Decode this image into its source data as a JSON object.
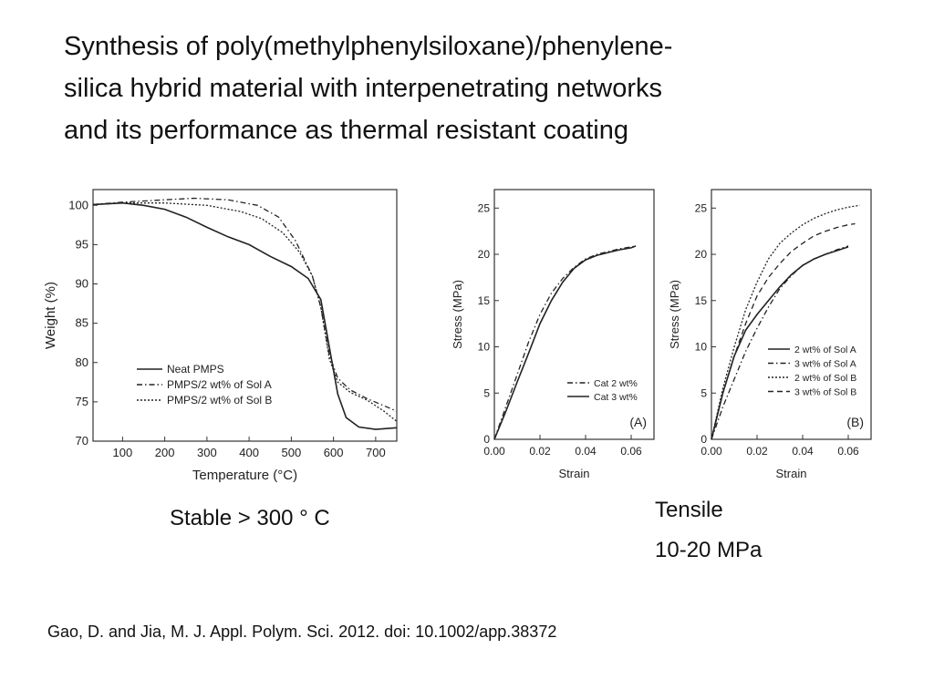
{
  "slide": {
    "title_lines": [
      "Synthesis of poly(methylphenylsiloxane)/phenylene-",
      "silica hybrid material with interpenetrating networks",
      "and its performance as thermal resistant coating"
    ],
    "caption_tga": "Stable > 300 ° C",
    "caption_tensile_line1": "Tensile",
    "caption_tensile_line2": "10-20 MPa",
    "citation": "Gao, D. and Jia, M. J. Appl. Polym. Sci. 2012. doi: 10.1002/app.38372"
  },
  "chart_data": [
    {
      "type": "line",
      "xlabel": "Temperature (°C)",
      "ylabel": "Weight (%)",
      "xlim": [
        30,
        750
      ],
      "ylim": [
        70,
        102
      ],
      "xticks": [
        100,
        200,
        300,
        400,
        500,
        600,
        700
      ],
      "yticks": [
        70,
        75,
        80,
        85,
        90,
        95,
        100
      ],
      "legend_position": "lower-left",
      "series": [
        {
          "name": "Neat PMPS",
          "dash": "solid",
          "points": [
            [
              30,
              100.1
            ],
            [
              100,
              100.3
            ],
            [
              150,
              100
            ],
            [
              200,
              99.5
            ],
            [
              250,
              98.5
            ],
            [
              300,
              97.2
            ],
            [
              350,
              96
            ],
            [
              400,
              95
            ],
            [
              450,
              93.5
            ],
            [
              500,
              92.2
            ],
            [
              540,
              90.7
            ],
            [
              570,
              88
            ],
            [
              590,
              82
            ],
            [
              610,
              76
            ],
            [
              630,
              73
            ],
            [
              660,
              71.8
            ],
            [
              700,
              71.5
            ],
            [
              750,
              71.7
            ]
          ]
        },
        {
          "name": "PMPS/2 wt% of Sol A",
          "dash": "dashdot",
          "points": [
            [
              30,
              100.1
            ],
            [
              100,
              100.4
            ],
            [
              200,
              100.7
            ],
            [
              270,
              100.9
            ],
            [
              350,
              100.7
            ],
            [
              420,
              100
            ],
            [
              470,
              98.5
            ],
            [
              510,
              95.5
            ],
            [
              550,
              91
            ],
            [
              570,
              87
            ],
            [
              590,
              81
            ],
            [
              610,
              78
            ],
            [
              640,
              76.5
            ],
            [
              680,
              75.4
            ],
            [
              720,
              74.5
            ],
            [
              750,
              73.8
            ]
          ]
        },
        {
          "name": "PMPS/2 wt% of Sol B",
          "dash": "dotted",
          "points": [
            [
              30,
              100.1
            ],
            [
              100,
              100.3
            ],
            [
              200,
              100.3
            ],
            [
              300,
              100
            ],
            [
              380,
              99.2
            ],
            [
              430,
              98.3
            ],
            [
              480,
              96.5
            ],
            [
              520,
              94
            ],
            [
              550,
              91
            ],
            [
              570,
              87
            ],
            [
              590,
              80.5
            ],
            [
              610,
              77.5
            ],
            [
              640,
              76.2
            ],
            [
              680,
              75.2
            ],
            [
              720,
              73.8
            ],
            [
              750,
              72.5
            ]
          ]
        }
      ]
    },
    {
      "type": "line",
      "xlabel": "Strain",
      "ylabel": "Stress (MPa)",
      "xlim": [
        0,
        0.07
      ],
      "ylim": [
        0,
        27
      ],
      "xticks": [
        0.0,
        0.02,
        0.04,
        0.06
      ],
      "xtick_labels": [
        "0.00",
        "0.02",
        "0.04",
        "0.06"
      ],
      "yticks": [
        0,
        5,
        10,
        15,
        20,
        25
      ],
      "legend_position": "center-right",
      "panel_label": "(A)",
      "series": [
        {
          "name": "Cat 2 wt%",
          "dash": "dashdot",
          "points": [
            [
              0,
              0
            ],
            [
              0.005,
              3.5
            ],
            [
              0.01,
              7
            ],
            [
              0.015,
              10.5
            ],
            [
              0.02,
              13.5
            ],
            [
              0.025,
              15.8
            ],
            [
              0.03,
              17.4
            ],
            [
              0.035,
              18.6
            ],
            [
              0.04,
              19.5
            ],
            [
              0.045,
              20
            ],
            [
              0.05,
              20.3
            ],
            [
              0.055,
              20.6
            ],
            [
              0.06,
              20.8
            ],
            [
              0.062,
              20.9
            ]
          ]
        },
        {
          "name": "Cat 3 wt%",
          "dash": "solid",
          "points": [
            [
              0,
              0
            ],
            [
              0.005,
              3
            ],
            [
              0.01,
              6.2
            ],
            [
              0.015,
              9.3
            ],
            [
              0.02,
              12.5
            ],
            [
              0.025,
              15
            ],
            [
              0.03,
              17
            ],
            [
              0.035,
              18.5
            ],
            [
              0.04,
              19.4
            ],
            [
              0.045,
              19.9
            ],
            [
              0.05,
              20.2
            ],
            [
              0.055,
              20.5
            ],
            [
              0.06,
              20.7
            ],
            [
              0.062,
              20.9
            ]
          ]
        }
      ]
    },
    {
      "type": "line",
      "xlabel": "Strain",
      "ylabel": "Stress (MPa)",
      "xlim": [
        0,
        0.07
      ],
      "ylim": [
        0,
        27
      ],
      "xticks": [
        0.0,
        0.02,
        0.04,
        0.06
      ],
      "xtick_labels": [
        "0.00",
        "0.02",
        "0.04",
        "0.06"
      ],
      "yticks": [
        0,
        5,
        10,
        15,
        20,
        25
      ],
      "legend_position": "lower-right",
      "panel_label": "(B)",
      "series": [
        {
          "name": "2 wt% of Sol A",
          "dash": "solid",
          "points": [
            [
              0,
              0
            ],
            [
              0.005,
              5
            ],
            [
              0.01,
              9
            ],
            [
              0.015,
              11.8
            ],
            [
              0.02,
              13.5
            ],
            [
              0.025,
              15
            ],
            [
              0.03,
              16.5
            ],
            [
              0.035,
              17.8
            ],
            [
              0.04,
              18.8
            ],
            [
              0.045,
              19.5
            ],
            [
              0.05,
              20
            ],
            [
              0.055,
              20.4
            ],
            [
              0.06,
              20.8
            ]
          ]
        },
        {
          "name": "3 wt% of Sol A",
          "dash": "dashdot",
          "points": [
            [
              0,
              0
            ],
            [
              0.005,
              3.5
            ],
            [
              0.01,
              6.5
            ],
            [
              0.015,
              9.5
            ],
            [
              0.02,
              12
            ],
            [
              0.025,
              14.3
            ],
            [
              0.03,
              16.3
            ],
            [
              0.035,
              17.7
            ],
            [
              0.04,
              18.8
            ],
            [
              0.045,
              19.5
            ],
            [
              0.05,
              20
            ],
            [
              0.055,
              20.5
            ],
            [
              0.06,
              20.9
            ]
          ]
        },
        {
          "name": "2 wt% of Sol B",
          "dash": "dotted",
          "points": [
            [
              0,
              0
            ],
            [
              0.005,
              5.5
            ],
            [
              0.01,
              10
            ],
            [
              0.015,
              14
            ],
            [
              0.02,
              17
            ],
            [
              0.025,
              19.5
            ],
            [
              0.03,
              21.2
            ],
            [
              0.035,
              22.3
            ],
            [
              0.04,
              23.2
            ],
            [
              0.045,
              23.9
            ],
            [
              0.05,
              24.4
            ],
            [
              0.055,
              24.8
            ],
            [
              0.06,
              25.1
            ],
            [
              0.065,
              25.3
            ]
          ]
        },
        {
          "name": "3 wt% of Sol B",
          "dash": "dashed",
          "points": [
            [
              0,
              0
            ],
            [
              0.005,
              5
            ],
            [
              0.01,
              9
            ],
            [
              0.015,
              12.5
            ],
            [
              0.02,
              15.5
            ],
            [
              0.025,
              17.5
            ],
            [
              0.03,
              19
            ],
            [
              0.035,
              20.3
            ],
            [
              0.04,
              21.2
            ],
            [
              0.045,
              22
            ],
            [
              0.05,
              22.5
            ],
            [
              0.055,
              22.9
            ],
            [
              0.06,
              23.2
            ],
            [
              0.063,
              23.3
            ]
          ]
        }
      ]
    }
  ]
}
